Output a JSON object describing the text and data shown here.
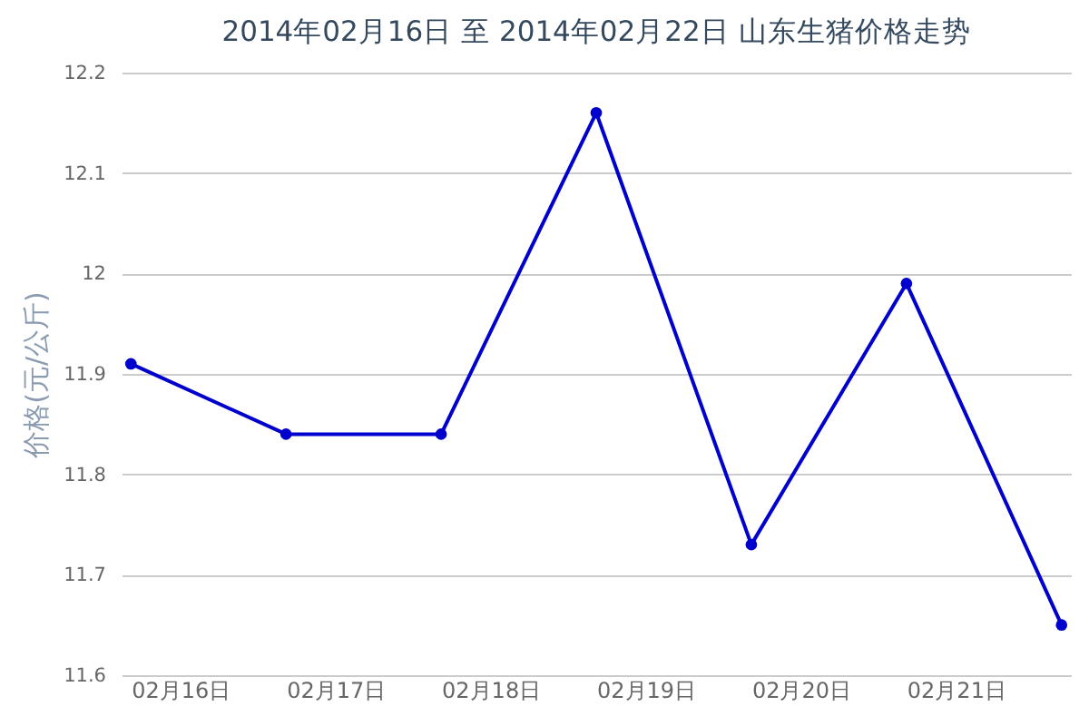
{
  "chart_data": {
    "type": "line",
    "title": "2014年02月16日 至 2014年02月22日 山东生猪价格走势",
    "ylabel": "价格(元/公斤)",
    "categories": [
      "02月16日",
      "02月17日",
      "02月18日",
      "02月19日",
      "02月20日",
      "02月21日",
      null
    ],
    "series": [
      {
        "color": "#0000cc",
        "values": [
          11.91,
          11.84,
          11.84,
          12.16,
          11.73,
          11.99,
          11.65
        ]
      }
    ],
    "ylim": [
      11.6,
      12.2
    ],
    "yticks": [
      11.6,
      11.7,
      11.8,
      11.9,
      12,
      12.1,
      12.2
    ],
    "grid": "y",
    "legend": false,
    "marker": "circle",
    "line_style": "solid"
  }
}
